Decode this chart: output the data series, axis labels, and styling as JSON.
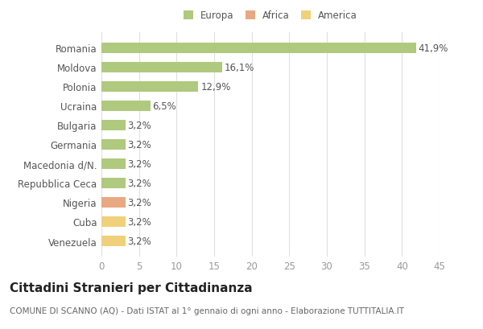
{
  "categories": [
    "Romania",
    "Moldova",
    "Polonia",
    "Ucraina",
    "Bulgaria",
    "Germania",
    "Macedonia d/N.",
    "Repubblica Ceca",
    "Nigeria",
    "Cuba",
    "Venezuela"
  ],
  "values": [
    41.9,
    16.1,
    12.9,
    6.5,
    3.2,
    3.2,
    3.2,
    3.2,
    3.2,
    3.2,
    3.2
  ],
  "labels": [
    "41,9%",
    "16,1%",
    "12,9%",
    "6,5%",
    "3,2%",
    "3,2%",
    "3,2%",
    "3,2%",
    "3,2%",
    "3,2%",
    "3,2%"
  ],
  "continent": [
    "Europa",
    "Europa",
    "Europa",
    "Europa",
    "Europa",
    "Europa",
    "Europa",
    "Europa",
    "Africa",
    "America",
    "America"
  ],
  "colors": {
    "Europa": "#afc97e",
    "Africa": "#e8a882",
    "America": "#f0d07a"
  },
  "legend": [
    "Europa",
    "Africa",
    "America"
  ],
  "legend_colors": [
    "#afc97e",
    "#e8a882",
    "#f0d07a"
  ],
  "xlim": [
    0,
    45
  ],
  "xticks": [
    0,
    5,
    10,
    15,
    20,
    25,
    30,
    35,
    40,
    45
  ],
  "title": "Cittadini Stranieri per Cittadinanza",
  "subtitle": "COMUNE DI SCANNO (AQ) - Dati ISTAT al 1° gennaio di ogni anno - Elaborazione TUTTITALIA.IT",
  "background_color": "#ffffff",
  "grid_color": "#e0e0e0",
  "bar_height": 0.55,
  "label_fontsize": 8.5,
  "ytick_fontsize": 8.5,
  "xtick_fontsize": 8.5,
  "title_fontsize": 11,
  "subtitle_fontsize": 7.5,
  "legend_fontsize": 8.5
}
